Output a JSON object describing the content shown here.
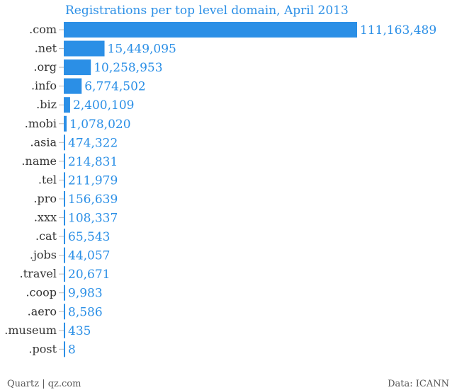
{
  "chart_data": {
    "type": "bar",
    "orientation": "horizontal",
    "title": "Registrations per top level domain, April 2013",
    "categories": [
      ".com",
      ".net",
      ".org",
      ".info",
      ".biz",
      ".mobi",
      ".asia",
      ".name",
      ".tel",
      ".pro",
      ".xxx",
      ".cat",
      ".jobs",
      ".travel",
      ".coop",
      ".aero",
      ".museum",
      ".post"
    ],
    "values": [
      111163489,
      15449095,
      10258953,
      6774502,
      2400109,
      1078020,
      474322,
      214831,
      211979,
      156639,
      108337,
      65543,
      44057,
      20671,
      9983,
      8586,
      435,
      8
    ],
    "value_labels": [
      "111,163,489",
      "15,449,095",
      "10,258,953",
      "6,774,502",
      "2,400,109",
      "1,078,020",
      "474,322",
      "214,831",
      "211,979",
      "156,639",
      "108,337",
      "65,543",
      "44,057",
      "20,671",
      "9,983",
      "8,586",
      "435",
      "8"
    ],
    "xlim": [
      0,
      111163489
    ],
    "grid": false,
    "legend": "none",
    "colors": {
      "bar": "#2b8fe6",
      "value_text": "#2b8fe6",
      "label_text": "#333333",
      "tick": "#bbbbbb"
    }
  },
  "footer": {
    "credit": "Quartz | qz.com",
    "source": "Data: ICANN"
  }
}
